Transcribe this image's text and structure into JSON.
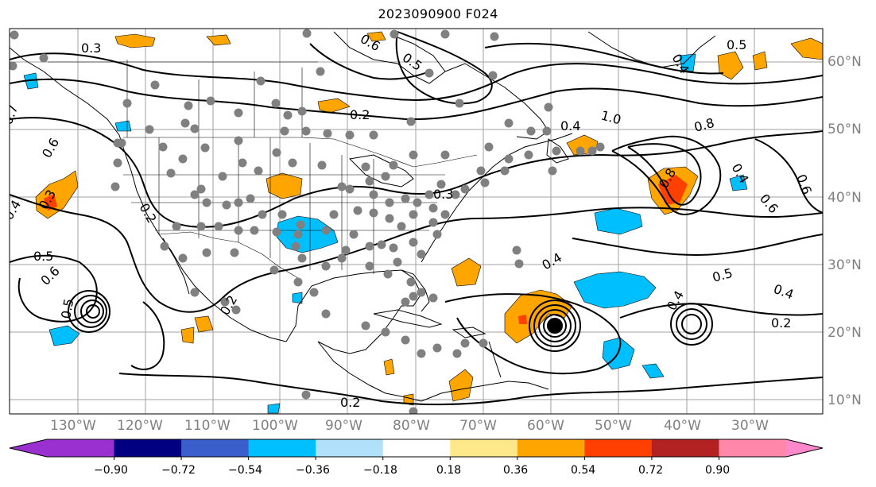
{
  "title": "2023090900 F024",
  "map": {
    "lat_labels": [
      "60°N",
      "50°N",
      "40°N",
      "30°N",
      "20°N",
      "10°N"
    ],
    "lon_labels": [
      "130°W",
      "120°W",
      "110°W",
      "100°W",
      "90°W",
      "80°W",
      "70°W",
      "60°W",
      "50°W",
      "40°W",
      "30°W"
    ],
    "contour_labels": [
      "0.3",
      "0.6",
      "0.5",
      "0.2",
      "1.0",
      "0.8",
      "0.4",
      "0.5",
      "0.4",
      "0.7",
      "0.6",
      "0.4",
      "0.3",
      "0.2",
      "0.5",
      "0.6",
      "0.5",
      "0.4",
      "0.3",
      "0.5",
      "0.4",
      "0.2",
      "0.2",
      "0.4",
      "0.6",
      "0.4",
      "0.6",
      "0.8",
      "0.2"
    ],
    "grid_line_color": "#a0a0a0",
    "marker_color": "#808080"
  },
  "colorbar": {
    "ticks": [
      "−0.90",
      "−0.72",
      "−0.54",
      "−0.36",
      "−0.18",
      "0.18",
      "0.36",
      "0.54",
      "0.72",
      "0.90"
    ],
    "colors": [
      "#9b30d0",
      "#000080",
      "#3a5fcd",
      "#00bfff",
      "#b0e0fa",
      "#ffffff",
      "#ffe88a",
      "#ffa500",
      "#ff4000",
      "#b22222",
      "#ff88aa",
      "#ff88cc"
    ]
  }
}
